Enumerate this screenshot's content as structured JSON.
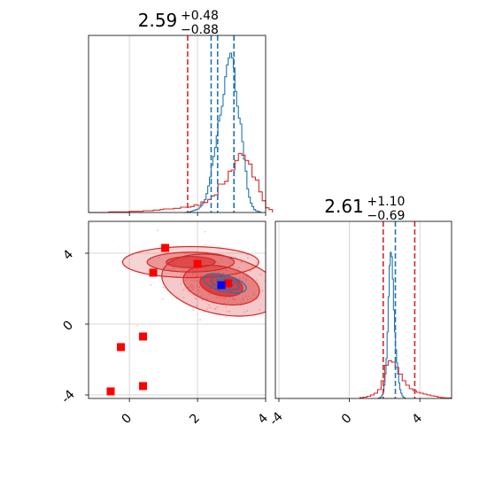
{
  "colors": {
    "blue": "#1f77b4",
    "red": "#d62728",
    "red_square": "#ff0000",
    "truth_marker": "#0000ff",
    "grid": "#cccccc"
  },
  "chart_data": [
    {
      "type": "histogram",
      "panel": "top-left",
      "title": {
        "value": "2.59",
        "upper": "+0.48",
        "lower": "−0.88"
      },
      "xlim": [
        -1.2,
        4.0
      ],
      "grid": true,
      "x_ticks": [
        0,
        2,
        4
      ],
      "series": [
        {
          "color": "blue",
          "bin_start": 1.6,
          "bin_width": 0.05,
          "counts": [
            0,
            0,
            0,
            1,
            2,
            3,
            4,
            5,
            6,
            9,
            12,
            16,
            22,
            32,
            45,
            60,
            80,
            95,
            110,
            130,
            155,
            165,
            180,
            200,
            230,
            250,
            262,
            270,
            262,
            245,
            205,
            180,
            160,
            150,
            120,
            90,
            70,
            40,
            26,
            16,
            10,
            5,
            3,
            2,
            1,
            0
          ]
        },
        {
          "color": "red",
          "bin_start": -1.2,
          "bin_width": 0.1,
          "counts": [
            0,
            0,
            0,
            0,
            0,
            0,
            1,
            1,
            1,
            1,
            1,
            1,
            2,
            2,
            2,
            2,
            3,
            3,
            3,
            4,
            4,
            5,
            6,
            6,
            6,
            7,
            7,
            9,
            9,
            9,
            10,
            13,
            12,
            18,
            17,
            22,
            28,
            30,
            48,
            48,
            53,
            70,
            72,
            88,
            100,
            97,
            88,
            82,
            60,
            55,
            35,
            20,
            8,
            5
          ],
          "lines_x": [
            1.71,
            3.07
          ]
        },
        {
          "color": "blue",
          "lines_x": [
            2.4,
            2.59,
            3.07
          ]
        }
      ],
      "ymax": 300
    },
    {
      "type": "contour",
      "panel": "bottom-left",
      "xlim": [
        -1.2,
        4.0
      ],
      "ylim": [
        -4.2,
        5.8
      ],
      "x_ticks": [
        0,
        2,
        4
      ],
      "y_ticks": [
        -4,
        0,
        4
      ],
      "grid": true,
      "red_contour": {
        "center": [
          2.7,
          2.2
        ],
        "sigma": [
          0.7,
          0.7
        ],
        "rho": -0.3
      },
      "red_tail": {
        "center": [
          1.8,
          3.5
        ],
        "sigma": [
          0.8,
          0.35
        ],
        "rho": 0.0
      },
      "blue_contour": {
        "center": [
          2.8,
          2.3
        ],
        "sigma": [
          0.35,
          0.3
        ],
        "rho": -0.5
      },
      "red_squares": [
        [
          -0.55,
          -3.8
        ],
        [
          -0.25,
          -1.3
        ],
        [
          0.4,
          -0.7
        ],
        [
          0.4,
          -3.5
        ],
        [
          0.7,
          2.9
        ],
        [
          1.05,
          4.3
        ],
        [
          2.0,
          3.4
        ],
        [
          2.9,
          2.3
        ]
      ],
      "truth_point": [
        2.7,
        2.2
      ]
    },
    {
      "type": "histogram",
      "panel": "bottom-right",
      "title": {
        "value": "2.61",
        "upper": "+1.10",
        "lower": "−0.69"
      },
      "xlim": [
        -4.2,
        5.8
      ],
      "grid": true,
      "x_ticks": [
        -4,
        0,
        4
      ],
      "series": [
        {
          "color": "blue",
          "bin_start": 1.6,
          "bin_width": 0.06,
          "counts": [
            0,
            1,
            2,
            4,
            8,
            16,
            30,
            55,
            90,
            150,
            230,
            300,
            330,
            320,
            270,
            200,
            150,
            110,
            80,
            55,
            35,
            20,
            12,
            6,
            3,
            1,
            0
          ]
        },
        {
          "color": "red",
          "bin_start": 0.6,
          "bin_width": 0.2,
          "counts": [
            2,
            3,
            5,
            8,
            12,
            20,
            40,
            75,
            85,
            82,
            70,
            55,
            40,
            30,
            22,
            18,
            14,
            12,
            10,
            8,
            6,
            5,
            3,
            2,
            1,
            1
          ]
        },
        {
          "color": "red",
          "lines_x": [
            1.92,
            3.71
          ]
        },
        {
          "color": "blue",
          "lines_x": [
            2.61
          ]
        }
      ],
      "ymax": 400
    }
  ]
}
